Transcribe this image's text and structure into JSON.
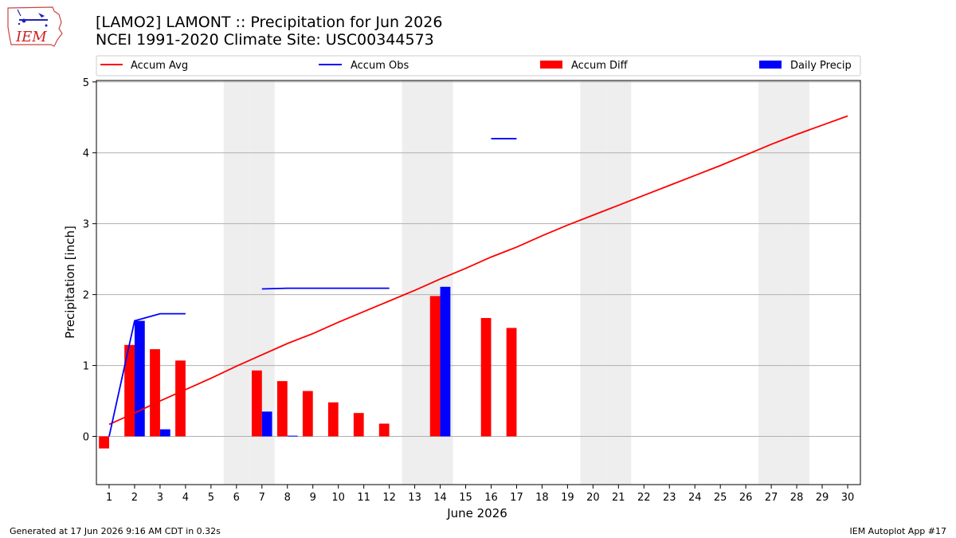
{
  "header": {
    "title_line1": "[LAMO2] LAMONT :: Precipitation for Jun 2026",
    "title_line2": "NCEI 1991-2020 Climate Site: USC00344573",
    "logo_text": "IEM"
  },
  "footer": {
    "generated": "Generated at 17 Jun 2026 9:16 AM CDT in 0.32s",
    "app": "IEM Autoplot App #17"
  },
  "colors": {
    "avg": "#ff0000",
    "obs": "#0000ff",
    "diff": "#ff0000",
    "daily": "#0000ff",
    "weekend": "#eeeeee",
    "grid": "#b0b0b0"
  },
  "chart_data": {
    "type": "bar",
    "xlabel": "June 2026",
    "ylabel": "Precipitation [inch]",
    "xlim": [
      0.5,
      30.5
    ],
    "ylim": [
      -0.68,
      5.02
    ],
    "yticks": [
      0,
      1,
      2,
      3,
      4,
      5
    ],
    "xticks": [
      1,
      2,
      3,
      4,
      5,
      6,
      7,
      8,
      9,
      10,
      11,
      12,
      13,
      14,
      15,
      16,
      17,
      18,
      19,
      20,
      21,
      22,
      23,
      24,
      25,
      26,
      27,
      28,
      29,
      30
    ],
    "grid": "horizontal",
    "legend_placement": "top",
    "legend": [
      "Accum Avg",
      "Accum Obs",
      "Accum Diff",
      "Daily Precip"
    ],
    "weekend_days": [
      6,
      7,
      13,
      14,
      20,
      21,
      27,
      28
    ],
    "accum_avg": {
      "x": [
        1,
        2,
        3,
        4,
        5,
        6,
        7,
        8,
        9,
        10,
        11,
        12,
        13,
        14,
        15,
        16,
        17,
        18,
        19,
        20,
        21,
        22,
        23,
        24,
        25,
        26,
        27,
        28,
        29,
        30
      ],
      "y": [
        0.17,
        0.33,
        0.5,
        0.66,
        0.82,
        0.99,
        1.15,
        1.31,
        1.45,
        1.61,
        1.76,
        1.91,
        2.06,
        2.22,
        2.37,
        2.53,
        2.67,
        2.83,
        2.98,
        3.12,
        3.26,
        3.4,
        3.54,
        3.68,
        3.82,
        3.97,
        4.12,
        4.26,
        4.39,
        4.52
      ]
    },
    "accum_obs": [
      {
        "x": [
          1,
          2,
          3,
          4
        ],
        "y": [
          0.0,
          1.63,
          1.73,
          1.73
        ]
      },
      {
        "x": [
          7,
          8,
          9,
          10,
          11,
          12
        ],
        "y": [
          2.08,
          2.09,
          2.09,
          2.09,
          2.09,
          2.09
        ]
      },
      {
        "x": [
          16,
          17
        ],
        "y": [
          4.2,
          4.2
        ]
      }
    ],
    "accum_diff": {
      "x": [
        1,
        2,
        3,
        4,
        7,
        8,
        9,
        10,
        11,
        12,
        14,
        16,
        17
      ],
      "y": [
        -0.17,
        1.29,
        1.23,
        1.07,
        0.93,
        0.78,
        0.64,
        0.48,
        0.33,
        0.18,
        1.98,
        1.67,
        1.53
      ]
    },
    "daily_precip": {
      "x": [
        2,
        3,
        7,
        8,
        14
      ],
      "y": [
        1.63,
        0.1,
        0.35,
        0.01,
        2.11
      ]
    }
  }
}
